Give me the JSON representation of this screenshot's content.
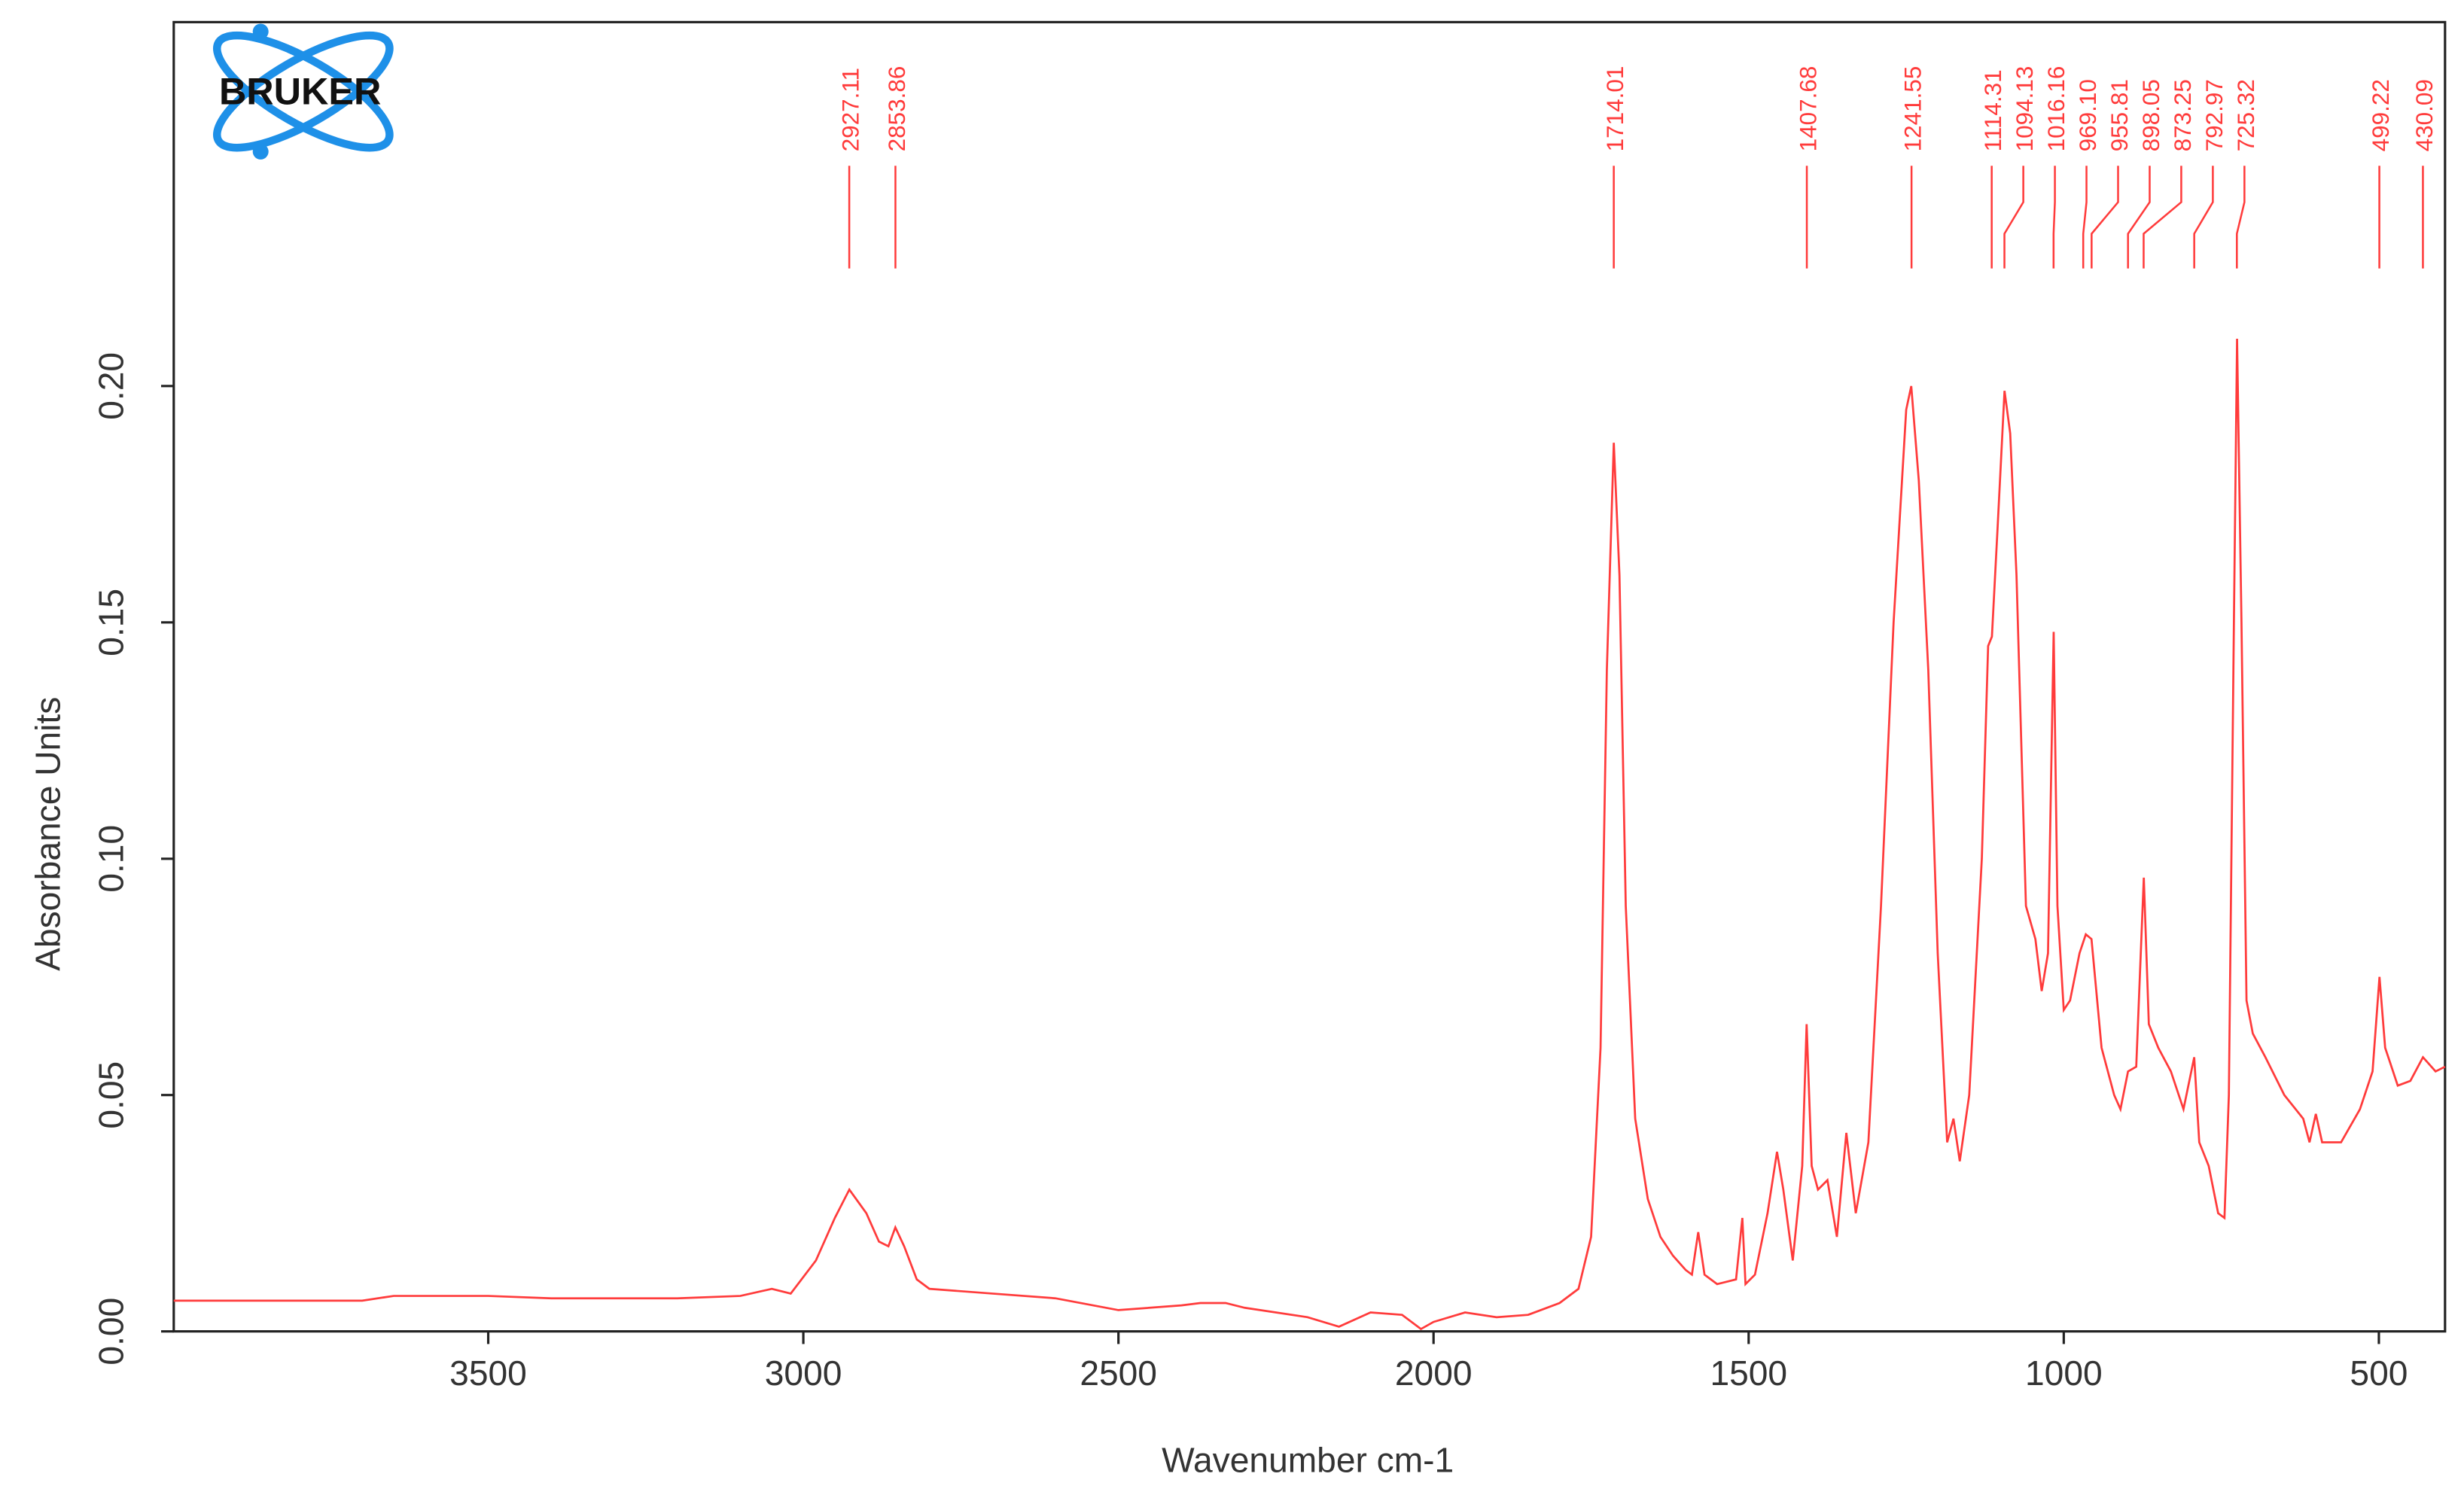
{
  "chart_data": {
    "type": "line",
    "logo": "BRUKER",
    "x_label": "Wavenumber cm-1",
    "y_label": "Absorbance Units",
    "xlim": [
      3999,
      395
    ],
    "ylim": [
      0,
      0.277
    ],
    "xticks": [
      3500,
      3000,
      2500,
      2000,
      1500,
      1000,
      500
    ],
    "yticks": [
      {
        "value": 0,
        "label": "0.00"
      },
      {
        "value": 0.05,
        "label": "0.05"
      },
      {
        "value": 0.1,
        "label": "0.10"
      },
      {
        "value": 0.15,
        "label": "0.15"
      },
      {
        "value": 0.2,
        "label": "0.20"
      }
    ],
    "color": "#ff3b3b",
    "peaks": {
      "values": [
        2927.11,
        2853.86,
        1714.01,
        1407.68,
        1241.55,
        1114.31,
        1094.13,
        1016.16,
        969.1,
        955.81,
        898.05,
        873.25,
        792.97,
        725.32,
        499.22,
        430.09
      ],
      "value_labels": [
        "2927.11",
        "2853.86",
        "1714.01",
        "1407.68",
        "1241.55",
        "1114.31",
        "1094.13",
        "1016.16",
        "969.10",
        "955.81",
        "898.05",
        "873.25",
        "792.97",
        "725.32",
        "499.22",
        "430.09"
      ]
    },
    "x": [
      3999,
      3700,
      3650,
      3500,
      3400,
      3200,
      3100,
      3050,
      3020,
      2980,
      2950,
      2927,
      2900,
      2880,
      2865,
      2854,
      2840,
      2820,
      2800,
      2700,
      2600,
      2500,
      2400,
      2370,
      2330,
      2300,
      2200,
      2150,
      2100,
      2050,
      2020,
      2000,
      1950,
      1900,
      1850,
      1800,
      1770,
      1750,
      1735,
      1725,
      1714,
      1705,
      1695,
      1680,
      1660,
      1640,
      1620,
      1600,
      1590,
      1580,
      1570,
      1550,
      1520,
      1510,
      1505,
      1490,
      1470,
      1455,
      1445,
      1430,
      1415,
      1408,
      1400,
      1390,
      1375,
      1360,
      1345,
      1330,
      1310,
      1290,
      1270,
      1250,
      1242,
      1230,
      1215,
      1200,
      1185,
      1175,
      1165,
      1150,
      1130,
      1120,
      1114,
      1105,
      1094,
      1085,
      1075,
      1060,
      1045,
      1035,
      1025,
      1016,
      1010,
      1000,
      990,
      975,
      965,
      956,
      940,
      920,
      910,
      898,
      885,
      873,
      865,
      850,
      830,
      810,
      793,
      785,
      770,
      755,
      745,
      738,
      730,
      725,
      718,
      710,
      700,
      680,
      650,
      620,
      610,
      600,
      590,
      560,
      530,
      510,
      499,
      490,
      470,
      450,
      430,
      410,
      395
    ],
    "values": [
      0.0065,
      0.0065,
      0.0075,
      0.0075,
      0.007,
      0.007,
      0.0075,
      0.009,
      0.008,
      0.015,
      0.024,
      0.03,
      0.025,
      0.019,
      0.018,
      0.022,
      0.018,
      0.011,
      0.009,
      0.008,
      0.007,
      0.0045,
      0.0055,
      0.006,
      0.006,
      0.005,
      0.003,
      0.001,
      0.004,
      0.0035,
      0.0005,
      0.002,
      0.004,
      0.003,
      0.0035,
      0.006,
      0.009,
      0.02,
      0.06,
      0.14,
      0.188,
      0.16,
      0.09,
      0.045,
      0.028,
      0.02,
      0.016,
      0.013,
      0.012,
      0.021,
      0.012,
      0.01,
      0.011,
      0.024,
      0.01,
      0.012,
      0.025,
      0.038,
      0.03,
      0.015,
      0.035,
      0.065,
      0.035,
      0.03,
      0.032,
      0.02,
      0.042,
      0.025,
      0.04,
      0.09,
      0.15,
      0.195,
      0.2,
      0.18,
      0.14,
      0.08,
      0.04,
      0.045,
      0.036,
      0.05,
      0.1,
      0.145,
      0.147,
      0.17,
      0.199,
      0.19,
      0.16,
      0.09,
      0.083,
      0.072,
      0.08,
      0.148,
      0.09,
      0.068,
      0.07,
      0.08,
      0.084,
      0.083,
      0.06,
      0.05,
      0.047,
      0.055,
      0.056,
      0.096,
      0.065,
      0.06,
      0.055,
      0.047,
      0.058,
      0.04,
      0.035,
      0.025,
      0.024,
      0.05,
      0.15,
      0.21,
      0.15,
      0.07,
      0.063,
      0.058,
      0.05,
      0.045,
      0.04,
      0.046,
      0.04,
      0.04,
      0.047,
      0.055,
      0.075,
      0.06,
      0.052,
      0.053,
      0.058,
      0.055,
      0.056
    ]
  }
}
